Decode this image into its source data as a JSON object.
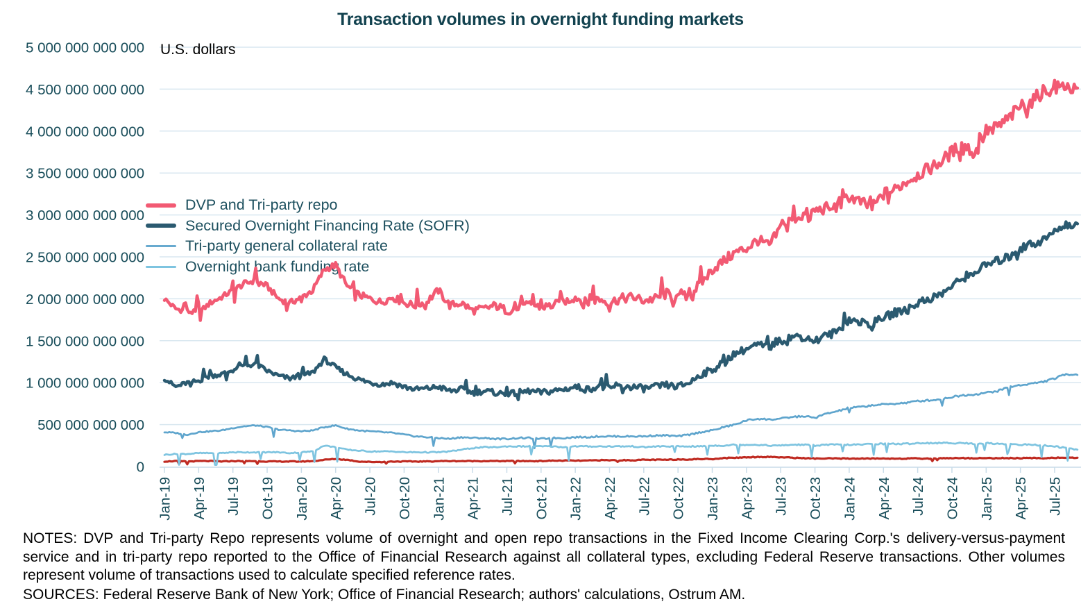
{
  "title": "Transaction volumes in overnight funding markets",
  "unit_label": "U.S. dollars",
  "legend": {
    "items": [
      {
        "label": "DVP and Tri-party repo",
        "color": "#f25a73",
        "thickness": 6
      },
      {
        "label": "Secured Overnight Financing Rate (SOFR)",
        "color": "#2b5a70",
        "thickness": 6
      },
      {
        "label": "Tri-party general collateral rate",
        "color": "#68aacf",
        "thickness": 3
      },
      {
        "label": "Overnight bank funding rate",
        "color": "#7ec4e0",
        "thickness": 3
      }
    ]
  },
  "notes": "NOTES: DVP and Tri-party Repo represents volume of overnight and open repo transactions in the Fixed Income Clearing Corp.'s delivery-versus-payment service and in tri-party repo reported to the Office of Financial Research against all collateral types, excluding Federal Reserve transactions. Other volumes represent volume of transactions used to calculate specified reference rates.",
  "sources": "SOURCES: Federal Reserve Bank of New York; Office of Financial Research; authors' calculations, Ostrum AM.",
  "colors": {
    "grid": "#d9e7f0",
    "axis": "#c9dce9",
    "tick_text": "#174c59",
    "title_text": "#12424f"
  },
  "chart_data": {
    "type": "line",
    "title": "Transaction volumes in overnight funding markets",
    "ylabel": "U.S. dollars",
    "ylim": [
      0,
      5000000000000
    ],
    "grid": "horizontal",
    "legend_position": "left-middle",
    "x_unit": "month",
    "x_start": "Jan-19",
    "x_end": "Sep-25",
    "x_tick_labels": [
      "Jan-19",
      "Apr-19",
      "Jul-19",
      "Oct-19",
      "Jan-20",
      "Apr-20",
      "Jul-20",
      "Oct-20",
      "Jan-21",
      "Apr-21",
      "Jul-21",
      "Oct-21",
      "Jan-22",
      "Apr-22",
      "Jul-22",
      "Oct-22",
      "Jan-23",
      "Apr-23",
      "Jul-23",
      "Oct-23",
      "Jan-24",
      "Apr-24",
      "Jul-24",
      "Oct-24",
      "Jan-25",
      "Apr-25",
      "Jul-25"
    ],
    "y_tick_labels": [
      "0",
      "500 000 000 000",
      "1 000 000 000 000",
      "1 500 000 000 000",
      "2 000 000 000 000",
      "2 500 000 000 000",
      "3 000 000 000 000",
      "3 500 000 000 000",
      "4 000 000 000 000",
      "4 500 000 000 000",
      "5 000 000 000 000"
    ],
    "values_unit": "trillions of U.S. dollars, monthly estimates read from chart",
    "series": [
      {
        "name": "DVP and Tri-party repo",
        "color": "#f25a73",
        "values": [
          2.0,
          1.88,
          1.85,
          1.83,
          1.95,
          2.02,
          2.1,
          2.18,
          2.22,
          2.15,
          2.0,
          1.95,
          2.02,
          2.1,
          2.35,
          2.4,
          2.15,
          2.05,
          2.0,
          1.96,
          2.02,
          1.95,
          1.92,
          1.97,
          2.1,
          1.92,
          1.95,
          1.86,
          1.88,
          1.92,
          1.86,
          1.88,
          1.93,
          1.9,
          1.92,
          1.96,
          2.02,
          1.95,
          2.0,
          1.96,
          2.0,
          2.02,
          1.98,
          2.0,
          2.06,
          2.0,
          2.05,
          2.18,
          2.35,
          2.45,
          2.55,
          2.6,
          2.7,
          2.63,
          2.85,
          2.95,
          3.0,
          3.05,
          3.08,
          3.1,
          3.22,
          3.15,
          3.08,
          3.25,
          3.3,
          3.4,
          3.48,
          3.55,
          3.63,
          3.75,
          3.85,
          3.72,
          4.0,
          4.05,
          4.15,
          4.3,
          4.35,
          4.48,
          4.5,
          4.55,
          4.45
        ]
      },
      {
        "name": "Secured Overnight Financing Rate (SOFR)",
        "color": "#2b5a70",
        "values": [
          1.05,
          0.95,
          1.0,
          1.02,
          1.08,
          1.1,
          1.15,
          1.2,
          1.22,
          1.14,
          1.08,
          1.05,
          1.08,
          1.12,
          1.28,
          1.18,
          1.1,
          1.04,
          1.0,
          0.98,
          1.0,
          0.95,
          0.92,
          0.93,
          0.95,
          0.9,
          0.92,
          0.88,
          0.9,
          0.88,
          0.86,
          0.88,
          0.9,
          0.88,
          0.9,
          0.92,
          0.95,
          0.92,
          0.95,
          0.93,
          0.95,
          0.95,
          0.93,
          0.95,
          0.97,
          0.95,
          1.0,
          1.1,
          1.15,
          1.25,
          1.35,
          1.4,
          1.45,
          1.42,
          1.5,
          1.55,
          1.55,
          1.5,
          1.55,
          1.62,
          1.75,
          1.72,
          1.7,
          1.78,
          1.82,
          1.88,
          1.95,
          2.0,
          2.05,
          2.15,
          2.25,
          2.33,
          2.4,
          2.45,
          2.5,
          2.6,
          2.65,
          2.7,
          2.8,
          2.9,
          2.85
        ]
      },
      {
        "name": "Tri-party general collateral rate",
        "color": "#5fa5cd",
        "values": [
          0.41,
          0.4,
          0.38,
          0.41,
          0.42,
          0.43,
          0.46,
          0.48,
          0.49,
          0.47,
          0.44,
          0.43,
          0.42,
          0.43,
          0.47,
          0.49,
          0.45,
          0.43,
          0.42,
          0.41,
          0.4,
          0.38,
          0.36,
          0.35,
          0.34,
          0.33,
          0.35,
          0.34,
          0.34,
          0.33,
          0.33,
          0.34,
          0.34,
          0.33,
          0.34,
          0.34,
          0.35,
          0.35,
          0.36,
          0.36,
          0.36,
          0.36,
          0.36,
          0.37,
          0.37,
          0.36,
          0.38,
          0.41,
          0.43,
          0.47,
          0.5,
          0.55,
          0.57,
          0.56,
          0.57,
          0.59,
          0.6,
          0.58,
          0.63,
          0.66,
          0.7,
          0.71,
          0.73,
          0.74,
          0.75,
          0.76,
          0.78,
          0.79,
          0.8,
          0.83,
          0.85,
          0.86,
          0.88,
          0.9,
          0.95,
          0.97,
          0.99,
          1.01,
          1.05,
          1.1,
          1.1
        ]
      },
      {
        "name": "Overnight bank funding rate",
        "color": "#7ec4e0",
        "values": [
          0.14,
          0.15,
          0.15,
          0.16,
          0.16,
          0.16,
          0.17,
          0.17,
          0.17,
          0.17,
          0.17,
          0.16,
          0.17,
          0.18,
          0.25,
          0.23,
          0.2,
          0.19,
          0.18,
          0.18,
          0.18,
          0.17,
          0.17,
          0.17,
          0.17,
          0.18,
          0.2,
          0.22,
          0.23,
          0.23,
          0.24,
          0.24,
          0.24,
          0.24,
          0.24,
          0.23,
          0.24,
          0.24,
          0.24,
          0.24,
          0.24,
          0.24,
          0.23,
          0.24,
          0.24,
          0.24,
          0.24,
          0.24,
          0.25,
          0.25,
          0.26,
          0.26,
          0.26,
          0.25,
          0.25,
          0.26,
          0.26,
          0.25,
          0.26,
          0.26,
          0.26,
          0.26,
          0.27,
          0.27,
          0.27,
          0.27,
          0.28,
          0.28,
          0.28,
          0.28,
          0.28,
          0.27,
          0.28,
          0.27,
          0.27,
          0.26,
          0.26,
          0.25,
          0.24,
          0.22,
          0.2
        ]
      },
      {
        "name": "(unlabeled dark red line)",
        "color": "#bf2a21",
        "values": [
          0.06,
          0.065,
          0.06,
          0.065,
          0.065,
          0.06,
          0.065,
          0.065,
          0.065,
          0.06,
          0.06,
          0.06,
          0.06,
          0.065,
          0.08,
          0.09,
          0.08,
          0.06,
          0.055,
          0.055,
          0.06,
          0.06,
          0.06,
          0.06,
          0.065,
          0.065,
          0.065,
          0.065,
          0.065,
          0.065,
          0.065,
          0.065,
          0.065,
          0.065,
          0.07,
          0.07,
          0.07,
          0.07,
          0.075,
          0.075,
          0.075,
          0.075,
          0.08,
          0.08,
          0.08,
          0.085,
          0.085,
          0.09,
          0.09,
          0.1,
          0.105,
          0.11,
          0.115,
          0.115,
          0.11,
          0.105,
          0.1,
          0.095,
          0.095,
          0.095,
          0.095,
          0.095,
          0.095,
          0.095,
          0.095,
          0.095,
          0.095,
          0.095,
          0.1,
          0.1,
          0.1,
          0.1,
          0.1,
          0.1,
          0.1,
          0.1,
          0.1,
          0.1,
          0.105,
          0.105,
          0.1
        ]
      }
    ]
  }
}
